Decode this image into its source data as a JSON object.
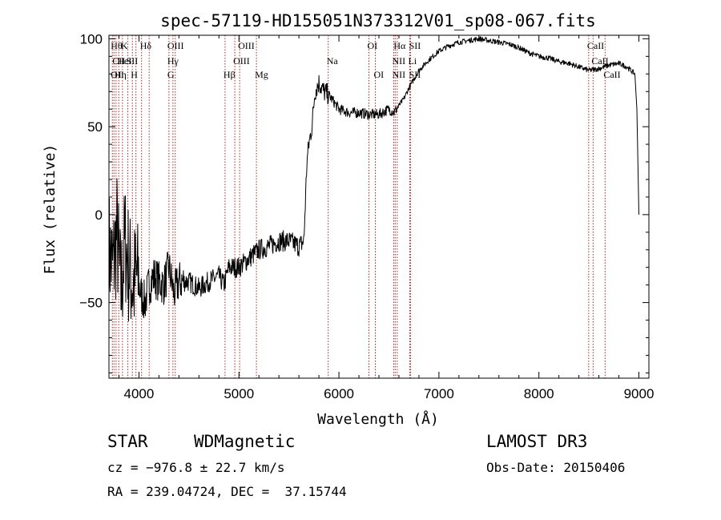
{
  "chart_data": {
    "type": "line",
    "title": "spec-57119-HD155051N373312V01_sp08-067.fits",
    "xlabel": "Wavelength (Å)",
    "ylabel": "Flux (relative)",
    "xlim": [
      3700,
      9100
    ],
    "ylim": [
      -93,
      102
    ],
    "xticks": [
      4000,
      5000,
      6000,
      7000,
      8000,
      9000
    ],
    "yticks": [
      -50,
      0,
      50,
      100
    ],
    "xtick_labels": [
      "4000",
      "5000",
      "6000",
      "7000",
      "8000",
      "9000"
    ],
    "ytick_labels": [
      "−50",
      "0",
      "50",
      "100"
    ],
    "line_color": "#000000",
    "marker_color": "#b22222",
    "spectrum_knots": [
      [
        3700,
        -20
      ],
      [
        3740,
        -30
      ],
      [
        3780,
        -10
      ],
      [
        3820,
        -45
      ],
      [
        3860,
        -15
      ],
      [
        3900,
        -30
      ],
      [
        3940,
        -40
      ],
      [
        3980,
        -35
      ],
      [
        4020,
        -45
      ],
      [
        4060,
        -50
      ],
      [
        4100,
        -40
      ],
      [
        4150,
        -35
      ],
      [
        4200,
        -38
      ],
      [
        4250,
        -40
      ],
      [
        4300,
        -30
      ],
      [
        4350,
        -45
      ],
      [
        4400,
        -38
      ],
      [
        4500,
        -38
      ],
      [
        4600,
        -42
      ],
      [
        4700,
        -38
      ],
      [
        4800,
        -35
      ],
      [
        4850,
        -40
      ],
      [
        4900,
        -30
      ],
      [
        5000,
        -30
      ],
      [
        5100,
        -25
      ],
      [
        5200,
        -20
      ],
      [
        5300,
        -18
      ],
      [
        5400,
        -15
      ],
      [
        5500,
        -15
      ],
      [
        5600,
        -18
      ],
      [
        5650,
        -15
      ],
      [
        5680,
        30
      ],
      [
        5700,
        40
      ],
      [
        5730,
        50
      ],
      [
        5760,
        70
      ],
      [
        5800,
        75
      ],
      [
        5850,
        70
      ],
      [
        5900,
        68
      ],
      [
        6000,
        60
      ],
      [
        6100,
        58
      ],
      [
        6200,
        58
      ],
      [
        6300,
        57
      ],
      [
        6400,
        57
      ],
      [
        6500,
        60
      ],
      [
        6550,
        58
      ],
      [
        6600,
        62
      ],
      [
        6650,
        66
      ],
      [
        6700,
        72
      ],
      [
        6800,
        82
      ],
      [
        6900,
        88
      ],
      [
        7000,
        93
      ],
      [
        7100,
        96
      ],
      [
        7200,
        98
      ],
      [
        7300,
        99
      ],
      [
        7400,
        100
      ],
      [
        7500,
        99
      ],
      [
        7600,
        98
      ],
      [
        7700,
        97
      ],
      [
        7800,
        95
      ],
      [
        7900,
        92
      ],
      [
        8000,
        90
      ],
      [
        8100,
        89
      ],
      [
        8200,
        87
      ],
      [
        8300,
        86
      ],
      [
        8400,
        84
      ],
      [
        8500,
        82
      ],
      [
        8600,
        83
      ],
      [
        8700,
        85
      ],
      [
        8800,
        86
      ],
      [
        8880,
        84
      ],
      [
        8960,
        80
      ],
      [
        8980,
        60
      ],
      [
        9000,
        0
      ]
    ],
    "line_markers": [
      {
        "x": 3734,
        "labels": [
          {
            "text": "Hθ",
            "row": 0
          },
          {
            "text": "OII",
            "row": 2
          }
        ]
      },
      {
        "x": 3750,
        "labels": [
          {
            "text": "CII",
            "row": 1
          }
        ]
      },
      {
        "x": 3771,
        "labels": [
          {
            "text": "Hη",
            "row": 2
          }
        ]
      },
      {
        "x": 3798,
        "labels": [
          {
            "text": "HeI",
            "row": 1
          }
        ]
      },
      {
        "x": 3835,
        "labels": [
          {
            "text": "K",
            "row": 0
          }
        ]
      },
      {
        "x": 3889,
        "labels": [
          {
            "text": "SII",
            "row": 1
          }
        ]
      },
      {
        "x": 3934,
        "labels": [
          {
            "text": "H",
            "row": 2
          }
        ]
      },
      {
        "x": 3970,
        "labels": []
      },
      {
        "x": 4026,
        "labels": [
          {
            "text": "Hδ",
            "row": 0
          }
        ]
      },
      {
        "x": 4102,
        "labels": []
      },
      {
        "x": 4300,
        "labels": [
          {
            "text": "OIII",
            "row": 0
          },
          {
            "text": "Hγ",
            "row": 1
          },
          {
            "text": "G",
            "row": 2
          }
        ]
      },
      {
        "x": 4340,
        "labels": []
      },
      {
        "x": 4363,
        "labels": []
      },
      {
        "x": 4861,
        "labels": [
          {
            "text": "Hβ",
            "row": 2
          }
        ]
      },
      {
        "x": 4959,
        "labels": [
          {
            "text": "OIII",
            "row": 1
          }
        ]
      },
      {
        "x": 5007,
        "labels": [
          {
            "text": "OIII",
            "row": 0
          }
        ]
      },
      {
        "x": 5175,
        "labels": [
          {
            "text": "Mg",
            "row": 2
          }
        ]
      },
      {
        "x": 5893,
        "labels": [
          {
            "text": "Na",
            "row": 1
          }
        ]
      },
      {
        "x": 6300,
        "labels": [
          {
            "text": "OI",
            "row": 0
          }
        ]
      },
      {
        "x": 6364,
        "labels": [
          {
            "text": "OI",
            "row": 2
          }
        ]
      },
      {
        "x": 6548,
        "labels": [
          {
            "text": "NII",
            "row": 1
          },
          {
            "text": "NII",
            "row": 2
          }
        ]
      },
      {
        "x": 6563,
        "labels": [
          {
            "text": "Hα",
            "row": 0
          }
        ]
      },
      {
        "x": 6583,
        "labels": []
      },
      {
        "x": 6708,
        "labels": [
          {
            "text": "Li",
            "row": 1
          }
        ]
      },
      {
        "x": 6717,
        "labels": [
          {
            "text": "SII",
            "row": 0
          },
          {
            "text": "SII",
            "row": 2
          }
        ]
      },
      {
        "x": 8498,
        "labels": [
          {
            "text": "CaII",
            "row": 0
          }
        ]
      },
      {
        "x": 8542,
        "labels": [
          {
            "text": "CaII",
            "row": 1
          }
        ]
      },
      {
        "x": 8662,
        "labels": [
          {
            "text": "CaII",
            "row": 2
          }
        ]
      }
    ]
  },
  "info": {
    "object_type": "STAR",
    "subclass": "WDMagnetic",
    "survey": "LAMOST DR3",
    "redshift": "cz = −976.8 ± 22.7 km/s",
    "obs_date": "Obs-Date: 20150406",
    "coords": "RA = 239.04724, DEC =  37.15744"
  }
}
